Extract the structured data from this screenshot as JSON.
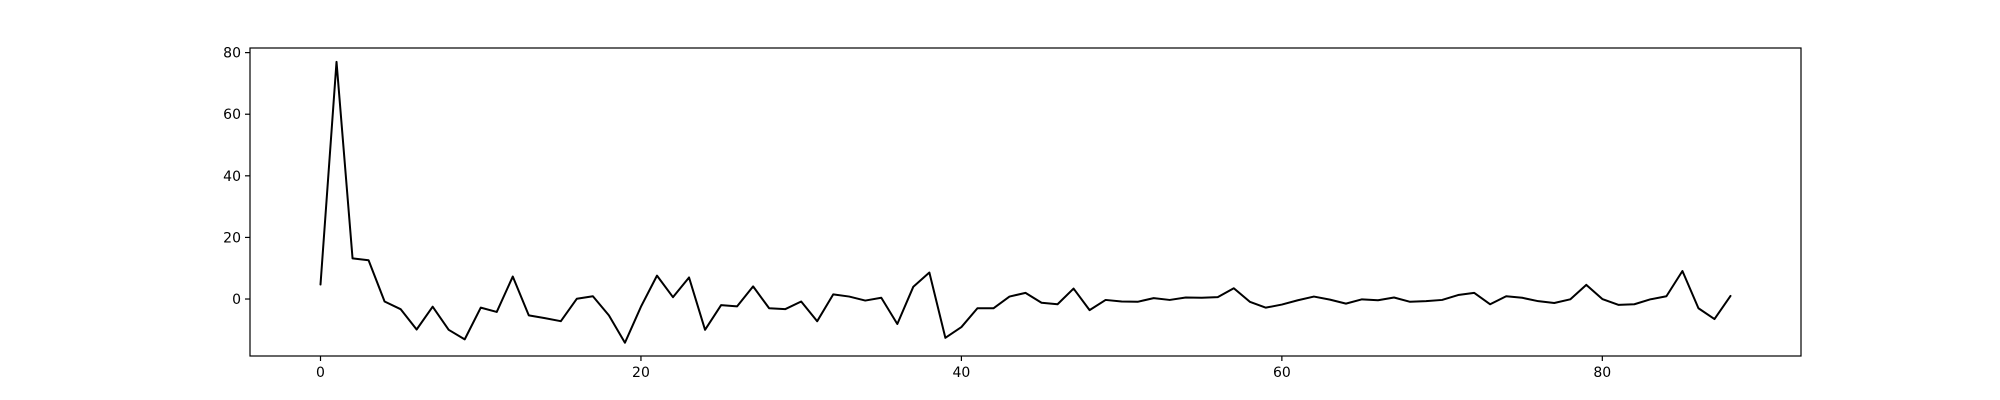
{
  "chart_data": {
    "type": "line",
    "title": "",
    "xlabel": "",
    "ylabel": "",
    "xlim": [
      -4.4,
      92.4
    ],
    "ylim": [
      -18.5,
      81.5
    ],
    "grid": false,
    "line_color": "#000000",
    "x_ticks": [
      0,
      20,
      40,
      60,
      80
    ],
    "y_ticks": [
      0,
      20,
      40,
      60,
      80
    ],
    "series": [
      {
        "x": [
          0,
          1,
          2,
          3,
          4,
          5,
          6,
          7,
          8,
          9,
          10,
          11,
          12,
          13,
          14,
          15,
          16,
          17,
          18,
          19,
          20,
          21,
          22,
          23,
          24,
          25,
          26,
          27,
          28,
          29,
          30,
          31,
          32,
          33,
          34,
          35,
          36,
          37,
          38,
          39,
          40,
          41,
          42,
          43,
          44,
          45,
          46,
          47,
          48,
          49,
          50,
          51,
          52,
          53,
          54,
          55,
          56,
          57,
          58,
          59,
          60,
          61,
          62,
          63,
          64,
          65,
          66,
          67,
          68,
          69,
          70,
          71,
          72,
          73,
          74,
          75,
          76,
          77,
          78,
          79,
          80,
          81,
          82,
          83,
          84,
          85,
          86,
          87,
          88
        ],
        "values": [
          4.7,
          77.0,
          13.2,
          12.6,
          -0.8,
          -3.3,
          -9.9,
          -2.5,
          -10.0,
          -13.1,
          -2.8,
          -4.2,
          7.3,
          -5.3,
          -6.2,
          -7.2,
          0.1,
          0.9,
          -5.3,
          -14.2,
          -2.5,
          7.6,
          0.6,
          7.0,
          -10.0,
          -2.0,
          -2.4,
          4.1,
          -3.0,
          -3.3,
          -0.8,
          -7.2,
          1.5,
          0.8,
          -0.5,
          0.4,
          -8.1,
          4.0,
          8.6,
          -12.6,
          -9.1,
          -3.0,
          -3.0,
          0.8,
          2.0,
          -1.2,
          -1.7,
          3.4,
          -3.6,
          -0.3,
          -0.8,
          -0.9,
          0.3,
          -0.3,
          0.5,
          0.4,
          0.6,
          3.5,
          -0.9,
          -2.8,
          -1.8,
          -0.4,
          0.8,
          -0.2,
          -1.5,
          -0.1,
          -0.4,
          0.5,
          -0.9,
          -0.7,
          -0.3,
          1.3,
          2.0,
          -1.7,
          0.9,
          0.4,
          -0.7,
          -1.3,
          -0.1,
          4.6,
          0.0,
          -1.9,
          -1.7,
          -0.1,
          0.9,
          9.1,
          -3.0,
          -6.5,
          1.0
        ]
      }
    ]
  }
}
